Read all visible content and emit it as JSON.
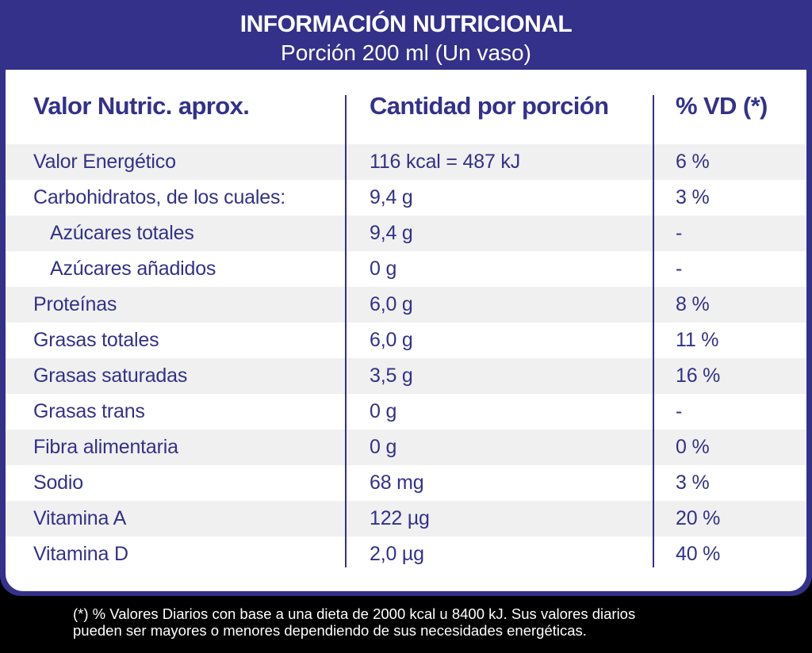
{
  "header": {
    "title": "INFORMACIÓN NUTRICIONAL",
    "subtitle": "Porción 200 ml (Un vaso)"
  },
  "columns": [
    "Valor Nutric. aprox.",
    "Cantidad por porción",
    "% VD (*)"
  ],
  "rows": [
    {
      "name": "Valor Energético",
      "amount": "116 kcal = 487 kJ",
      "dv": "6 %"
    },
    {
      "name": "Carbohidratos, de los cuales:",
      "amount": "9,4 g",
      "dv": "3 %"
    },
    {
      "name": "Azúcares totales",
      "amount": "9,4 g",
      "dv": "-"
    },
    {
      "name": "Azúcares añadidos",
      "amount": "0 g",
      "dv": "-"
    },
    {
      "name": "Proteínas",
      "amount": "6,0 g",
      "dv": "8 %"
    },
    {
      "name": "Grasas totales",
      "amount": "6,0 g",
      "dv": "11 %"
    },
    {
      "name": "Grasas saturadas",
      "amount": "3,5 g",
      "dv": "16 %"
    },
    {
      "name": "Grasas trans",
      "amount": "0 g",
      "dv": "-"
    },
    {
      "name": "Fibra alimentaria",
      "amount": "0 g",
      "dv": "0 %"
    },
    {
      "name": "Sodio",
      "amount": "68 mg",
      "dv": "3 %"
    },
    {
      "name": "Vitamina A",
      "amount": "122 µg",
      "dv": "20 %"
    },
    {
      "name": "Vitamina D",
      "amount": "2,0 µg",
      "dv": "40 %"
    }
  ],
  "footnote": {
    "line1": "(*) % Valores Diarios con base a una dieta de 2000 kcal u 8400 kJ. Sus valores diarios",
    "line2": "pueden ser mayores o menores dependiendo de sus necesidades energéticas."
  },
  "colors": {
    "brand": "#33318a",
    "row_shade": "#f0f0f0",
    "background": "#000000"
  }
}
